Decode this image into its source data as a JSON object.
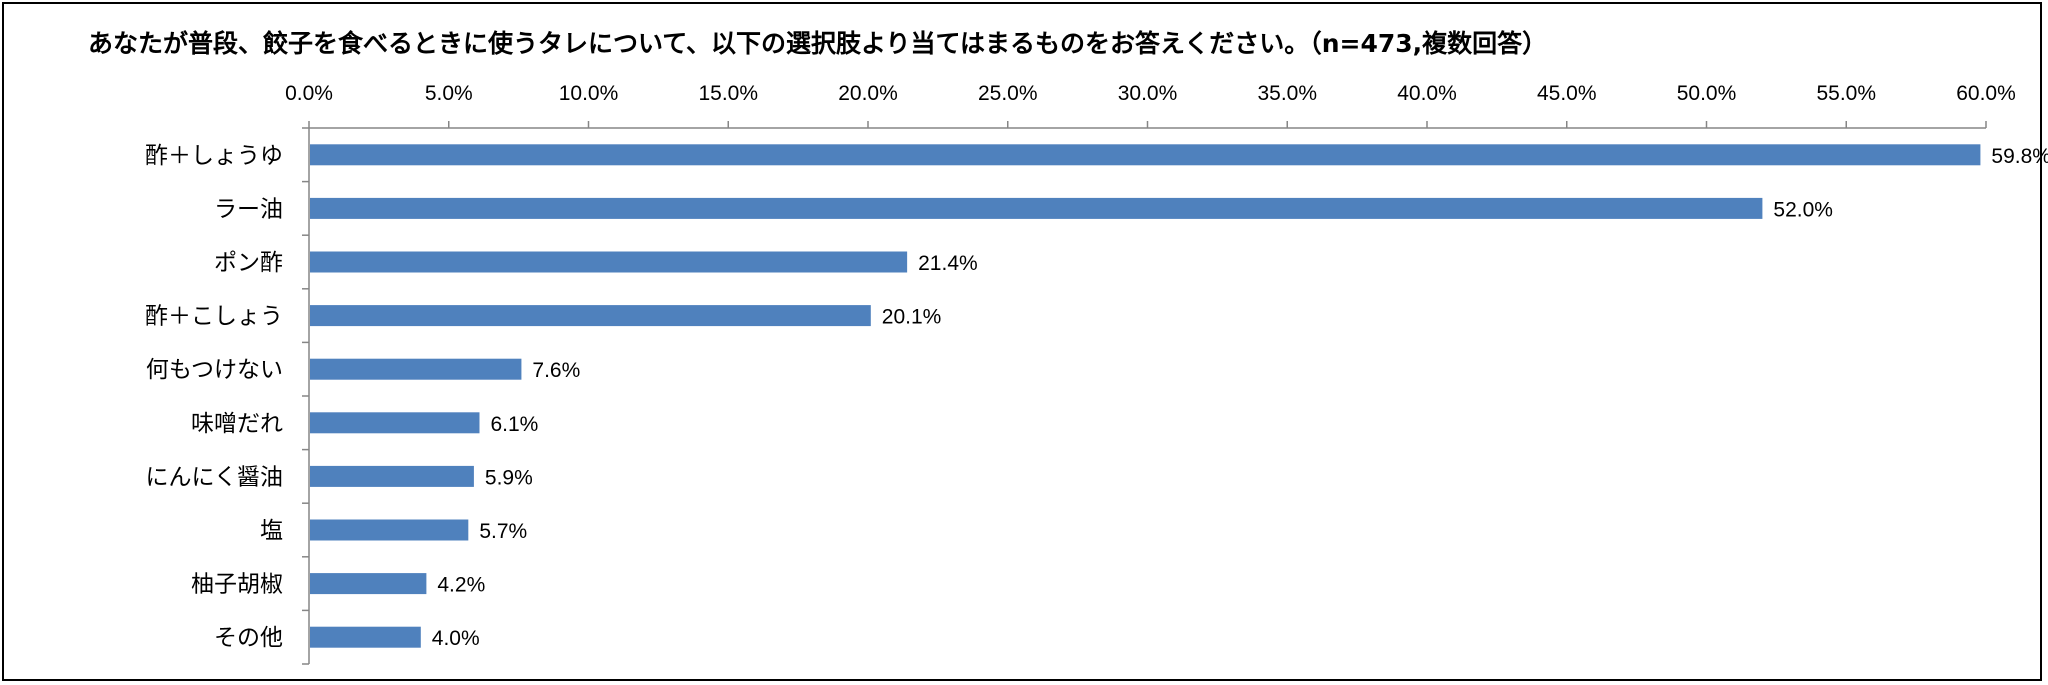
{
  "chart_data": {
    "type": "bar",
    "orientation": "horizontal",
    "title": "あなたが普段、餃子を食べるときに使うタレについて、以下の選択肢より当てはまるものをお答えください。（n=473,複数回答）",
    "categories": [
      "酢＋しょうゆ",
      "ラー油",
      "ポン酢",
      "酢＋こしょう",
      "何もつけない",
      "味噌だれ",
      "にんにく醤油",
      "塩",
      "柚子胡椒",
      "その他"
    ],
    "values": [
      59.8,
      52.0,
      21.4,
      20.1,
      7.6,
      6.1,
      5.9,
      5.7,
      4.2,
      4.0
    ],
    "data_labels": [
      "59.8%",
      "52.0%",
      "21.4%",
      "20.1%",
      "7.6%",
      "6.1%",
      "5.9%",
      "5.7%",
      "4.2%",
      "4.0%"
    ],
    "x_ticks": [
      "0.0%",
      "5.0%",
      "10.0%",
      "15.0%",
      "20.0%",
      "25.0%",
      "30.0%",
      "35.0%",
      "40.0%",
      "45.0%",
      "50.0%",
      "55.0%",
      "60.0%"
    ],
    "xlim": [
      0,
      60
    ],
    "xaxis_position": "top",
    "grid": false,
    "legend": "none",
    "bar_color": "#4F81BD",
    "xlabel": "",
    "ylabel": ""
  }
}
